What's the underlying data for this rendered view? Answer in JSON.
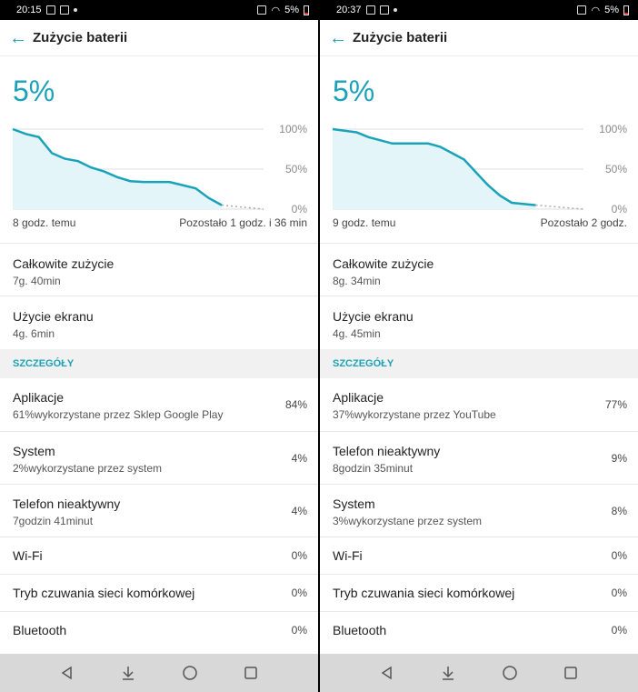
{
  "left": {
    "status": {
      "time": "20:15",
      "battery": "5%"
    },
    "title": "Zużycie baterii",
    "percent": "5%",
    "chart_data": {
      "type": "area",
      "x": [
        0,
        0.5,
        1,
        1.5,
        2,
        2.5,
        3,
        3.5,
        4,
        4.5,
        5,
        5.5,
        6,
        6.5,
        7,
        7.5,
        8
      ],
      "values": [
        100,
        94,
        90,
        70,
        63,
        60,
        52,
        47,
        40,
        35,
        34,
        34,
        34,
        30,
        26,
        14,
        5
      ],
      "projected": [
        [
          8,
          5
        ],
        [
          9.6,
          0
        ]
      ],
      "yticks": [
        "100%",
        "50%",
        "0%"
      ],
      "ylim": [
        0,
        100
      ],
      "grid": true
    },
    "chart_left_label": "8 godz. temu",
    "chart_right_label": "Pozostało 1 godz. i 36 min",
    "total_label": "Całkowite zużycie",
    "total_value": "7g. 40min",
    "screen_label": "Użycie ekranu",
    "screen_value": "4g. 6min",
    "section": "SZCZEGÓŁY",
    "items": [
      {
        "label": "Aplikacje",
        "sub": "61%wykorzystane przez Sklep Google Play",
        "value": "84%"
      },
      {
        "label": "System",
        "sub": "2%wykorzystane przez system",
        "value": "4%"
      },
      {
        "label": "Telefon nieaktywny",
        "sub": "7godzin 41minut",
        "value": "4%"
      },
      {
        "label": "Wi-Fi",
        "sub": "",
        "value": "0%"
      },
      {
        "label": "Tryb czuwania sieci komórkowej",
        "sub": "",
        "value": "0%"
      },
      {
        "label": "Bluetooth",
        "sub": "",
        "value": "0%"
      }
    ]
  },
  "right": {
    "status": {
      "time": "20:37",
      "battery": "5%"
    },
    "title": "Zużycie baterii",
    "percent": "5%",
    "chart_data": {
      "type": "area",
      "x": [
        0,
        0.5,
        1,
        1.5,
        2,
        2.5,
        3,
        3.5,
        4,
        4.5,
        5,
        5.5,
        6,
        6.5,
        7,
        7.5,
        8.5
      ],
      "values": [
        100,
        98,
        96,
        90,
        86,
        82,
        82,
        82,
        82,
        78,
        70,
        62,
        46,
        30,
        17,
        8,
        5
      ],
      "projected": [
        [
          8.5,
          5
        ],
        [
          10.5,
          0
        ]
      ],
      "yticks": [
        "100%",
        "50%",
        "0%"
      ],
      "ylim": [
        0,
        100
      ],
      "grid": true
    },
    "chart_left_label": "9 godz. temu",
    "chart_right_label": "Pozostało 2 godz.",
    "total_label": "Całkowite zużycie",
    "total_value": "8g. 34min",
    "screen_label": "Użycie ekranu",
    "screen_value": "4g. 45min",
    "section": "SZCZEGÓŁY",
    "items": [
      {
        "label": "Aplikacje",
        "sub": "37%wykorzystane przez YouTube",
        "value": "77%"
      },
      {
        "label": "Telefon nieaktywny",
        "sub": "8godzin 35minut",
        "value": "9%"
      },
      {
        "label": "System",
        "sub": "3%wykorzystane przez system",
        "value": "8%"
      },
      {
        "label": "Wi-Fi",
        "sub": "",
        "value": "0%"
      },
      {
        "label": "Tryb czuwania sieci komórkowej",
        "sub": "",
        "value": "0%"
      },
      {
        "label": "Bluetooth",
        "sub": "",
        "value": "0%"
      }
    ]
  }
}
